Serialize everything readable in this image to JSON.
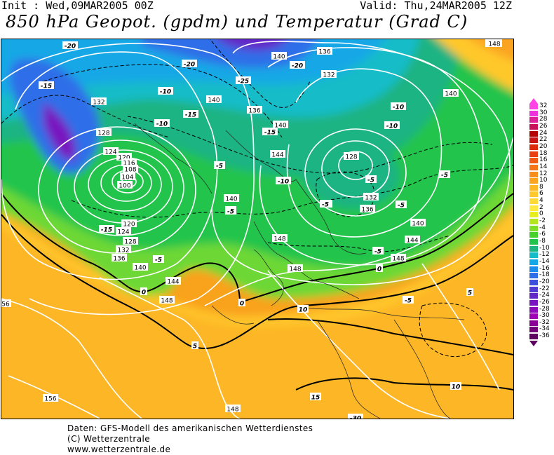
{
  "header": {
    "init": "Init : Wed,09MAR2005 00Z",
    "valid": "Valid: Thu,24MAR2005 12Z",
    "title": "850 hPa Geopot. (gpdm) und Temperatur (Grad C)"
  },
  "legend": {
    "values": [
      "32",
      "30",
      "28",
      "26",
      "24",
      "22",
      "20",
      "18",
      "16",
      "14",
      "12",
      "10",
      "8",
      "6",
      "4",
      "2",
      "0",
      "-2",
      "-4",
      "-6",
      "-8",
      "-10",
      "-12",
      "-14",
      "-16",
      "-18",
      "-20",
      "-22",
      "-24",
      "-26",
      "-28",
      "-30",
      "-32",
      "-34",
      "-36"
    ],
    "colors": [
      "#ff44e6",
      "#ee33dd",
      "#dd2299",
      "#c8115a",
      "#b40000",
      "#c81414",
      "#dc2a0a",
      "#e84010",
      "#f05a14",
      "#f57418",
      "#f88e1c",
      "#fba420",
      "#fdb826",
      "#ffc82c",
      "#ffd936",
      "#ffe83f",
      "#e6ee1e",
      "#b4e61e",
      "#7fdc28",
      "#46d02e",
      "#20c44c",
      "#1eb482",
      "#14bcc8",
      "#14a8e6",
      "#1e8ced",
      "#2d6ee8",
      "#3c50dc",
      "#503cd2",
      "#6428c8",
      "#7814c0",
      "#8c0aba",
      "#a000b4",
      "#8a0096",
      "#74007a",
      "#5e0060"
    ]
  },
  "map": {
    "geopotential_labels": [
      "140",
      "136",
      "132",
      "148",
      "140",
      "132",
      "128",
      "124",
      "120",
      "116",
      "108",
      "104",
      "100",
      "140",
      "136",
      "140",
      "144",
      "128",
      "132",
      "136",
      "140",
      "120",
      "124",
      "128",
      "132",
      "136",
      "140",
      "144",
      "148",
      "140",
      "148",
      "144",
      "148",
      "148",
      "56",
      "156",
      "148",
      "148",
      "140"
    ],
    "temperature_labels": [
      "-20",
      "-20",
      "-20",
      "-25",
      "-15",
      "-10",
      "-15",
      "-10",
      "-10",
      "-15",
      "-10",
      "-5",
      "-5",
      "-10",
      "-5",
      "-15",
      "-5",
      "-5",
      "-5",
      "-5",
      "-5",
      "0",
      "-5",
      "-5",
      "0",
      "0",
      "-5",
      "10",
      "5",
      "5",
      "10",
      "15",
      "-30"
    ]
  },
  "footer": {
    "line1": "Daten: GFS-Modell des amerikanischen Wetterdienstes",
    "line2": "(C) Wetterzentrale",
    "line3": "www.wetterzentrale.de"
  }
}
